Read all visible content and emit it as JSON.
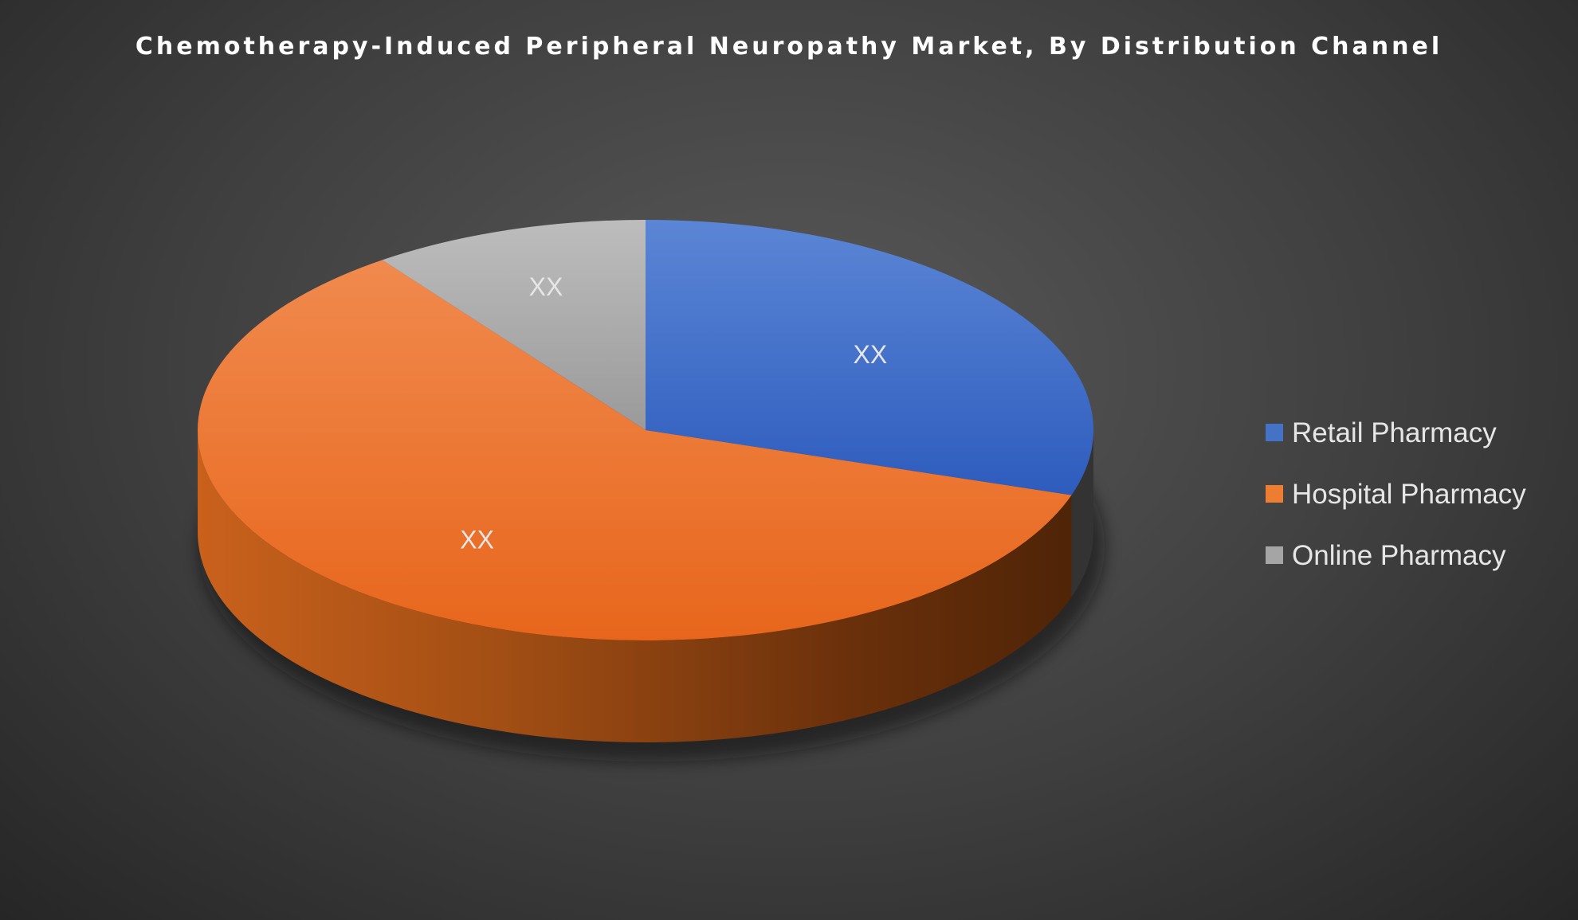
{
  "chart_data": {
    "type": "pie",
    "title": "Chemotherapy-Induced Peripheral Neuropathy Market, By Distribution Channel",
    "categories": [
      "Retail Pharmacy",
      "Hospital Pharmacy",
      "Online Pharmacy"
    ],
    "values": [
      30,
      60,
      10
    ],
    "data_labels": [
      "XX",
      "XX",
      "XX"
    ],
    "colors": [
      "#4472c4",
      "#ed7d31",
      "#a5a5a5"
    ],
    "legend_position": "right",
    "style": "3d"
  }
}
